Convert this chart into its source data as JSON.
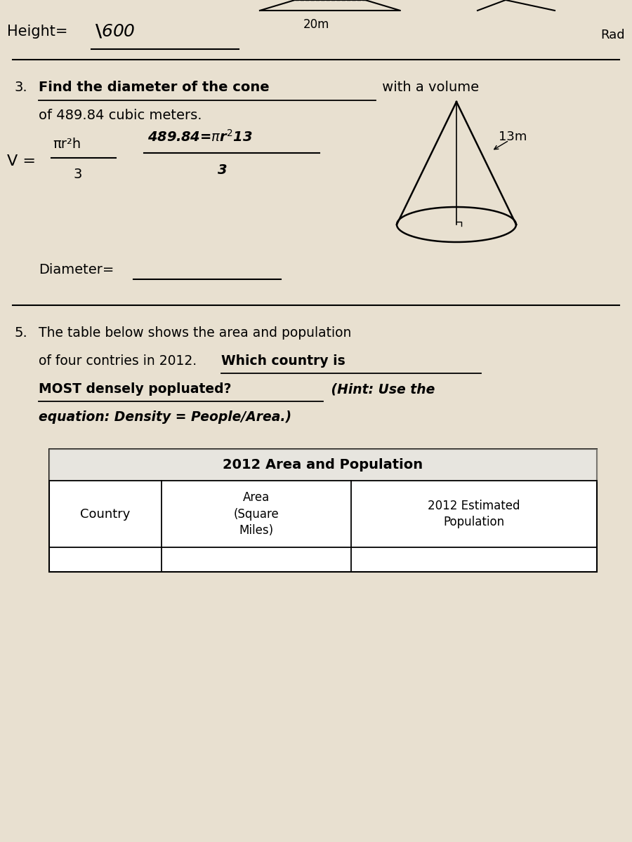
{
  "bg_color": "#e8e0d0",
  "top_label_20m": "20m",
  "top_label_rad": "Rad",
  "q3_number": "3.",
  "q3_line1_plain": " with a volume",
  "q3_line1_underlined": "Find the diameter of the cone",
  "q3_line2": "of 489.84 cubic meters.",
  "q3_formula_numerator": "πr²h",
  "q3_formula_denominator": "3",
  "q3_cone_label": "13m",
  "q3_diameter_label": "Diameter=",
  "q5_number": "5.",
  "q5_line1": "The table below shows the area and population",
  "q5_line2a": "of four contries in 2012.  ",
  "q5_bold1": "Which country is",
  "q5_bold2": "MOST densely popluated?",
  "q5_italic1": " (Hint: Use the",
  "q5_italic2": "equation: Density = People/Area.)",
  "table_title": "2012 Area and Population",
  "col1_header": "Country",
  "col2_header": "Area\n(Square\nMiles)",
  "col3_header": "2012 Estimated\nPopulation"
}
